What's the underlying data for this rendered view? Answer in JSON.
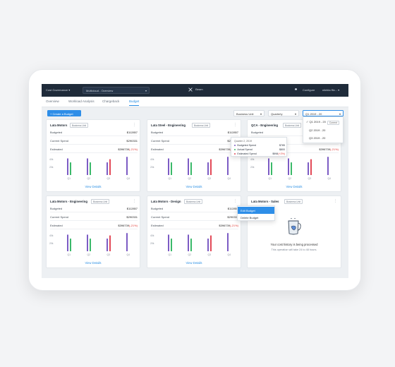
{
  "topbar": {
    "app_name": "Cost Governance",
    "view_select": "Multicloud - Overview",
    "brand": "Beam",
    "configure": "Configure",
    "user": "nikhita ffix..."
  },
  "tabs": [
    "Overview",
    "Workload Analysis",
    "Chargeback",
    "Budget"
  ],
  "active_tab": "Budget",
  "toolbar": {
    "create_label": "+ Create a Budget",
    "filter_business_unit": "Business Unit",
    "filter_period": "Quarterly",
    "filter_quarter": "Q1 2019 - 20"
  },
  "quarter_options": [
    {
      "label": "✓ Q1 2019 - 20",
      "tag": "Current"
    },
    {
      "label": "Q2 2019 - 20",
      "tag": ""
    },
    {
      "label": "Q3 2019 - 20",
      "tag": ""
    }
  ],
  "colors": {
    "purple": "#7c5cc4",
    "green": "#3bb96a",
    "red": "#e34a58",
    "yellow": "#f2d06b",
    "accent": "#2e8ee8"
  },
  "chart_defaults": {
    "yticks": [
      "40k",
      "20k"
    ],
    "quarters": [
      "Q1",
      "Q2",
      "Q3",
      "Q4"
    ],
    "ylim": [
      0,
      50
    ]
  },
  "cards": [
    {
      "title": "Lata Motors",
      "badge": "Business Unit",
      "rows": [
        {
          "label": "Budgeted",
          "value": "$112857",
          "pct": ""
        },
        {
          "label": "Current Spend",
          "value": "$290331",
          "pct": ""
        },
        {
          "label": "Estimated",
          "value": "$396739",
          "pct": "(-21%)"
        }
      ],
      "series": [
        [
          42,
          32
        ],
        [
          42,
          32
        ],
        [
          32,
          40
        ],
        [
          46,
          0
        ]
      ],
      "view": "View Details"
    },
    {
      "title": "Lata Steel - Engineering",
      "badge": "Business Unit",
      "rows": [
        {
          "label": "Budgeted",
          "value": "$112857",
          "pct": ""
        },
        {
          "label": "Current Spend",
          "value": "$290331",
          "pct": ""
        },
        {
          "label": "Estimated",
          "value": "$396739",
          "pct": "(-21%)"
        }
      ],
      "series": [
        [
          42,
          32
        ],
        [
          42,
          32
        ],
        [
          32,
          40
        ],
        [
          46,
          0
        ]
      ],
      "view": "View Details"
    },
    {
      "title": "QCA - Engineering",
      "badge": "Business Unit",
      "rows": [
        {
          "label": "Budgeted",
          "value": "$112857",
          "pct": ""
        },
        {
          "label": "Current Spend",
          "value": "$290331",
          "pct": ""
        },
        {
          "label": "Estimated",
          "value": "$396739",
          "pct": "(-21%)"
        }
      ],
      "series": [
        [
          42,
          32
        ],
        [
          42,
          32
        ],
        [
          32,
          40
        ],
        [
          46,
          0
        ]
      ],
      "view": "View Details"
    },
    {
      "title": "Lata Motors - Engineering",
      "badge": "Business Unit",
      "rows": [
        {
          "label": "Budgeted",
          "value": "$112857",
          "pct": ""
        },
        {
          "label": "Current Spend",
          "value": "$290331",
          "pct": ""
        },
        {
          "label": "Estimated",
          "value": "$396739",
          "pct": "(-21%)"
        }
      ],
      "series": [
        [
          42,
          32
        ],
        [
          42,
          32
        ],
        [
          32,
          40
        ],
        [
          46,
          0
        ]
      ],
      "view": "View Details"
    },
    {
      "title": "Lata Motors - Design",
      "badge": "Business Unit",
      "rows": [
        {
          "label": "Budgeted",
          "value": "$112857",
          "pct": ""
        },
        {
          "label": "Current Spend",
          "value": "$290331",
          "pct": ""
        },
        {
          "label": "Estimated",
          "value": "$396739",
          "pct": "(-21%)"
        }
      ],
      "series": [
        [
          42,
          32
        ],
        [
          42,
          32
        ],
        [
          32,
          40
        ],
        [
          46,
          0
        ]
      ],
      "view": "View Details"
    }
  ],
  "empty_card": {
    "title": "Lata Motors - Sales",
    "badge": "Business Unit",
    "message": "Your cost history is being processed",
    "sub": "This operation will take 24 to 48 hours."
  },
  "tooltip": {
    "title": "Quarter 2, 2019",
    "items": [
      {
        "label": "Budgeted Spend",
        "value": "$785",
        "pct": ""
      },
      {
        "label": "Actual Spend",
        "value": "$800",
        "pct": ""
      },
      {
        "label": "Estimated Spend",
        "value": "$998",
        "pct": "(+2%)"
      }
    ]
  },
  "context_menu": [
    "Edit Budget",
    "Delete Budget"
  ]
}
